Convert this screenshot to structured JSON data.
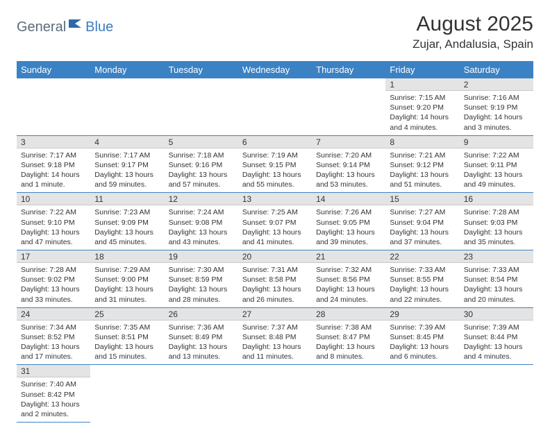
{
  "logo": {
    "text1": "General",
    "text2": "Blue"
  },
  "title": "August 2025",
  "location": "Zujar, Andalusia, Spain",
  "colors": {
    "header_bg": "#3b82c4",
    "header_text": "#ffffff",
    "daynum_bg": "#e4e4e4",
    "border": "#3b82c4",
    "logo_gray": "#5a6b7a",
    "logo_blue": "#3b7bbf"
  },
  "weekdays": [
    "Sunday",
    "Monday",
    "Tuesday",
    "Wednesday",
    "Thursday",
    "Friday",
    "Saturday"
  ],
  "weeks": [
    [
      null,
      null,
      null,
      null,
      null,
      {
        "n": "1",
        "sr": "7:15 AM",
        "ss": "9:20 PM",
        "dl": "14 hours and 4 minutes."
      },
      {
        "n": "2",
        "sr": "7:16 AM",
        "ss": "9:19 PM",
        "dl": "14 hours and 3 minutes."
      }
    ],
    [
      {
        "n": "3",
        "sr": "7:17 AM",
        "ss": "9:18 PM",
        "dl": "14 hours and 1 minute."
      },
      {
        "n": "4",
        "sr": "7:17 AM",
        "ss": "9:17 PM",
        "dl": "13 hours and 59 minutes."
      },
      {
        "n": "5",
        "sr": "7:18 AM",
        "ss": "9:16 PM",
        "dl": "13 hours and 57 minutes."
      },
      {
        "n": "6",
        "sr": "7:19 AM",
        "ss": "9:15 PM",
        "dl": "13 hours and 55 minutes."
      },
      {
        "n": "7",
        "sr": "7:20 AM",
        "ss": "9:14 PM",
        "dl": "13 hours and 53 minutes."
      },
      {
        "n": "8",
        "sr": "7:21 AM",
        "ss": "9:12 PM",
        "dl": "13 hours and 51 minutes."
      },
      {
        "n": "9",
        "sr": "7:22 AM",
        "ss": "9:11 PM",
        "dl": "13 hours and 49 minutes."
      }
    ],
    [
      {
        "n": "10",
        "sr": "7:22 AM",
        "ss": "9:10 PM",
        "dl": "13 hours and 47 minutes."
      },
      {
        "n": "11",
        "sr": "7:23 AM",
        "ss": "9:09 PM",
        "dl": "13 hours and 45 minutes."
      },
      {
        "n": "12",
        "sr": "7:24 AM",
        "ss": "9:08 PM",
        "dl": "13 hours and 43 minutes."
      },
      {
        "n": "13",
        "sr": "7:25 AM",
        "ss": "9:07 PM",
        "dl": "13 hours and 41 minutes."
      },
      {
        "n": "14",
        "sr": "7:26 AM",
        "ss": "9:05 PM",
        "dl": "13 hours and 39 minutes."
      },
      {
        "n": "15",
        "sr": "7:27 AM",
        "ss": "9:04 PM",
        "dl": "13 hours and 37 minutes."
      },
      {
        "n": "16",
        "sr": "7:28 AM",
        "ss": "9:03 PM",
        "dl": "13 hours and 35 minutes."
      }
    ],
    [
      {
        "n": "17",
        "sr": "7:28 AM",
        "ss": "9:02 PM",
        "dl": "13 hours and 33 minutes."
      },
      {
        "n": "18",
        "sr": "7:29 AM",
        "ss": "9:00 PM",
        "dl": "13 hours and 31 minutes."
      },
      {
        "n": "19",
        "sr": "7:30 AM",
        "ss": "8:59 PM",
        "dl": "13 hours and 28 minutes."
      },
      {
        "n": "20",
        "sr": "7:31 AM",
        "ss": "8:58 PM",
        "dl": "13 hours and 26 minutes."
      },
      {
        "n": "21",
        "sr": "7:32 AM",
        "ss": "8:56 PM",
        "dl": "13 hours and 24 minutes."
      },
      {
        "n": "22",
        "sr": "7:33 AM",
        "ss": "8:55 PM",
        "dl": "13 hours and 22 minutes."
      },
      {
        "n": "23",
        "sr": "7:33 AM",
        "ss": "8:54 PM",
        "dl": "13 hours and 20 minutes."
      }
    ],
    [
      {
        "n": "24",
        "sr": "7:34 AM",
        "ss": "8:52 PM",
        "dl": "13 hours and 17 minutes."
      },
      {
        "n": "25",
        "sr": "7:35 AM",
        "ss": "8:51 PM",
        "dl": "13 hours and 15 minutes."
      },
      {
        "n": "26",
        "sr": "7:36 AM",
        "ss": "8:49 PM",
        "dl": "13 hours and 13 minutes."
      },
      {
        "n": "27",
        "sr": "7:37 AM",
        "ss": "8:48 PM",
        "dl": "13 hours and 11 minutes."
      },
      {
        "n": "28",
        "sr": "7:38 AM",
        "ss": "8:47 PM",
        "dl": "13 hours and 8 minutes."
      },
      {
        "n": "29",
        "sr": "7:39 AM",
        "ss": "8:45 PM",
        "dl": "13 hours and 6 minutes."
      },
      {
        "n": "30",
        "sr": "7:39 AM",
        "ss": "8:44 PM",
        "dl": "13 hours and 4 minutes."
      }
    ],
    [
      {
        "n": "31",
        "sr": "7:40 AM",
        "ss": "8:42 PM",
        "dl": "13 hours and 2 minutes."
      },
      null,
      null,
      null,
      null,
      null,
      null
    ]
  ],
  "labels": {
    "sunrise": "Sunrise:",
    "sunset": "Sunset:",
    "daylight": "Daylight:"
  }
}
